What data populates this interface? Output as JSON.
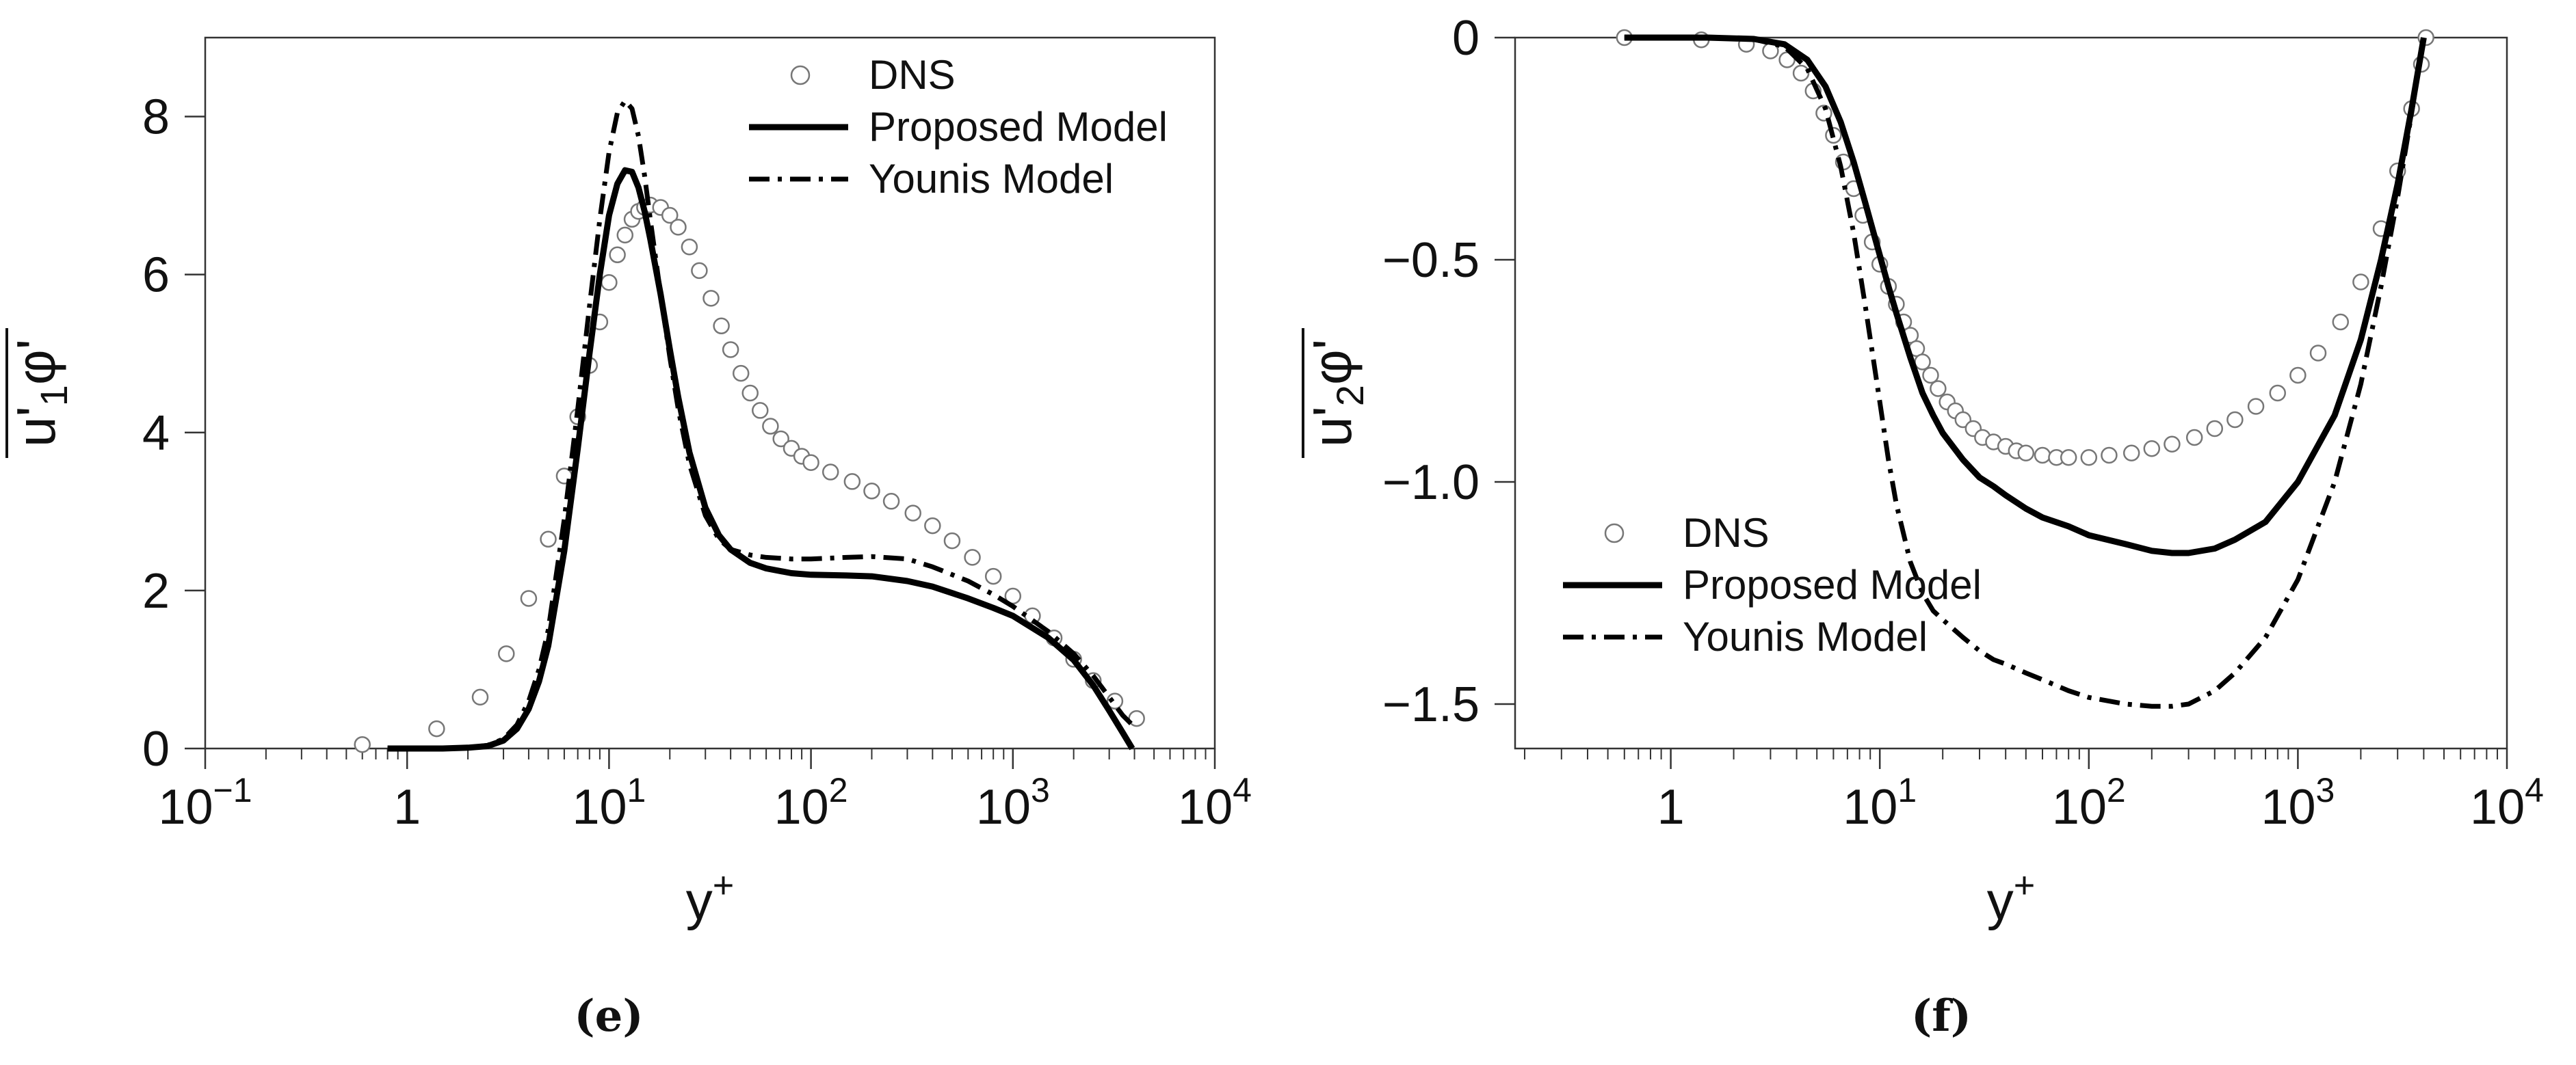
{
  "chart_data": [
    {
      "type": "line",
      "panel_caption": "(e)",
      "xscale": "log",
      "xlim": [
        0.1,
        10000
      ],
      "ylim": [
        0,
        9
      ],
      "xlabel": "y+",
      "ylabel": "u'1φ'",
      "x_ticks": [
        {
          "value": 0.1,
          "label": "10",
          "exp": "−1"
        },
        {
          "value": 1,
          "label": "1",
          "exp": ""
        },
        {
          "value": 10,
          "label": "10",
          "exp": "1"
        },
        {
          "value": 100,
          "label": "10",
          "exp": "2"
        },
        {
          "value": 1000,
          "label": "10",
          "exp": "3"
        },
        {
          "value": 10000,
          "label": "10",
          "exp": "4"
        }
      ],
      "y_ticks": [
        {
          "value": 0,
          "label": "0"
        },
        {
          "value": 2,
          "label": "2"
        },
        {
          "value": 4,
          "label": "4"
        },
        {
          "value": 6,
          "label": "6"
        },
        {
          "value": 8,
          "label": "8"
        }
      ],
      "legend_position": "top-right",
      "series": [
        {
          "name": "DNS",
          "style": "circles",
          "x": [
            0.6,
            1.4,
            2.3,
            3.1,
            4.0,
            5.0,
            6.0,
            7.0,
            8.0,
            9.0,
            10.0,
            11.0,
            12.0,
            13.0,
            14.0,
            15.0,
            16.0,
            18.0,
            20.0,
            22.0,
            25.0,
            28.0,
            32.0,
            36.0,
            40.0,
            45.0,
            50.0,
            56.0,
            63.0,
            71.0,
            80.0,
            90.0,
            100.0,
            125.0,
            160.0,
            200.0,
            250.0,
            320.0,
            400.0,
            500.0,
            630.0,
            800.0,
            1000.0,
            1250.0,
            1600.0,
            2000.0,
            2500.0,
            3200.0,
            4100.0
          ],
          "y": [
            0.05,
            0.25,
            0.65,
            1.2,
            1.9,
            2.65,
            3.45,
            4.2,
            4.85,
            5.4,
            5.9,
            6.25,
            6.5,
            6.7,
            6.8,
            6.85,
            6.88,
            6.85,
            6.75,
            6.6,
            6.35,
            6.05,
            5.7,
            5.35,
            5.05,
            4.75,
            4.5,
            4.28,
            4.08,
            3.92,
            3.8,
            3.7,
            3.62,
            3.5,
            3.38,
            3.26,
            3.13,
            2.98,
            2.82,
            2.63,
            2.42,
            2.18,
            1.93,
            1.68,
            1.4,
            1.13,
            0.86,
            0.6,
            0.38
          ]
        },
        {
          "name": "Proposed Model",
          "style": "solid",
          "x": [
            0.8,
            1.5,
            2.0,
            2.5,
            3.0,
            3.5,
            4.0,
            4.5,
            5.0,
            6.0,
            7.0,
            8.0,
            9.0,
            10.0,
            11.0,
            12.0,
            13.0,
            14.0,
            15.0,
            16.0,
            18.0,
            20.0,
            22.0,
            25.0,
            30.0,
            35.0,
            40.0,
            50.0,
            60.0,
            80.0,
            100.0,
            150.0,
            200.0,
            300.0,
            400.0,
            600.0,
            800.0,
            1000.0,
            1500.0,
            2000.0,
            2500.0,
            3000.0,
            3500.0,
            3900.0
          ],
          "y": [
            0.0,
            0.0,
            0.01,
            0.03,
            0.1,
            0.25,
            0.5,
            0.85,
            1.3,
            2.5,
            3.8,
            5.0,
            6.0,
            6.75,
            7.15,
            7.32,
            7.3,
            7.1,
            6.8,
            6.45,
            5.75,
            5.05,
            4.45,
            3.75,
            3.05,
            2.7,
            2.52,
            2.35,
            2.28,
            2.22,
            2.2,
            2.19,
            2.18,
            2.12,
            2.05,
            1.9,
            1.78,
            1.68,
            1.4,
            1.12,
            0.8,
            0.48,
            0.2,
            0.0
          ]
        },
        {
          "name": "Younis Model",
          "style": "dashdot",
          "x": [
            0.8,
            1.5,
            2.0,
            2.5,
            3.0,
            3.5,
            4.0,
            4.5,
            5.0,
            6.0,
            7.0,
            8.0,
            9.0,
            10.0,
            11.0,
            12.0,
            13.0,
            14.0,
            15.0,
            16.0,
            18.0,
            20.0,
            22.0,
            25.0,
            30.0,
            35.0,
            40.0,
            50.0,
            60.0,
            80.0,
            100.0,
            150.0,
            200.0,
            300.0,
            400.0,
            600.0,
            800.0,
            1000.0,
            1500.0,
            2000.0,
            2500.0,
            3000.0,
            3500.0,
            3900.0
          ],
          "y": [
            0.0,
            0.0,
            0.01,
            0.04,
            0.12,
            0.3,
            0.6,
            1.0,
            1.5,
            2.9,
            4.3,
            5.6,
            6.7,
            7.55,
            8.05,
            8.2,
            8.1,
            7.75,
            7.25,
            6.7,
            5.75,
            4.95,
            4.3,
            3.6,
            2.95,
            2.65,
            2.52,
            2.45,
            2.42,
            2.4,
            2.4,
            2.42,
            2.43,
            2.4,
            2.3,
            2.12,
            1.95,
            1.8,
            1.48,
            1.2,
            0.92,
            0.65,
            0.42,
            0.3
          ]
        }
      ]
    },
    {
      "type": "line",
      "panel_caption": "(f)",
      "xscale": "log",
      "xlim": [
        0.18,
        10000
      ],
      "ylim": [
        -1.6,
        0
      ],
      "xlabel": "y+",
      "ylabel": "u'2φ'",
      "x_ticks": [
        {
          "value": 1,
          "label": "1",
          "exp": ""
        },
        {
          "value": 10,
          "label": "10",
          "exp": "1"
        },
        {
          "value": 100,
          "label": "10",
          "exp": "2"
        },
        {
          "value": 1000,
          "label": "10",
          "exp": "3"
        },
        {
          "value": 10000,
          "label": "10",
          "exp": "4"
        }
      ],
      "y_ticks": [
        {
          "value": 0,
          "label": "0"
        },
        {
          "value": -0.5,
          "label": "−0.5"
        },
        {
          "value": -1.0,
          "label": "−1.0"
        },
        {
          "value": -1.5,
          "label": "−1.5"
        }
      ],
      "legend_position": "center-left",
      "series": [
        {
          "name": "DNS",
          "style": "circles",
          "x": [
            0.6,
            1.4,
            2.3,
            3.0,
            3.6,
            4.2,
            4.8,
            5.4,
            6.0,
            6.7,
            7.5,
            8.3,
            9.2,
            10.0,
            11.0,
            12.0,
            13.0,
            14.0,
            15.0,
            16.0,
            17.5,
            19.0,
            21.0,
            23.0,
            25.0,
            28.0,
            31.0,
            35.0,
            40.0,
            45.0,
            50.0,
            60.0,
            70.0,
            80.0,
            100.0,
            125.0,
            160.0,
            200.0,
            250.0,
            320.0,
            400.0,
            500.0,
            630.0,
            800.0,
            1000.0,
            1250.0,
            1600.0,
            2000.0,
            2500.0,
            3000.0,
            3500.0,
            3900.0,
            4100.0
          ],
          "y": [
            0.0,
            -0.005,
            -0.015,
            -0.03,
            -0.05,
            -0.08,
            -0.12,
            -0.17,
            -0.22,
            -0.28,
            -0.34,
            -0.4,
            -0.46,
            -0.51,
            -0.56,
            -0.6,
            -0.64,
            -0.67,
            -0.7,
            -0.73,
            -0.76,
            -0.79,
            -0.82,
            -0.84,
            -0.86,
            -0.88,
            -0.9,
            -0.91,
            -0.92,
            -0.93,
            -0.935,
            -0.94,
            -0.945,
            -0.945,
            -0.945,
            -0.94,
            -0.935,
            -0.925,
            -0.915,
            -0.9,
            -0.88,
            -0.86,
            -0.83,
            -0.8,
            -0.76,
            -0.71,
            -0.64,
            -0.55,
            -0.43,
            -0.3,
            -0.16,
            -0.06,
            0.0
          ]
        },
        {
          "name": "Proposed Model",
          "style": "solid",
          "x": [
            0.6,
            1.5,
            2.5,
            3.5,
            4.5,
            5.5,
            6.5,
            7.5,
            8.5,
            10.0,
            11.0,
            12.0,
            14.0,
            16.0,
            18.0,
            20.0,
            25.0,
            30.0,
            35.0,
            40.0,
            50.0,
            60.0,
            80.0,
            100.0,
            150.0,
            200.0,
            250.0,
            300.0,
            400.0,
            500.0,
            700.0,
            1000.0,
            1500.0,
            2000.0,
            2500.0,
            3000.0,
            3500.0,
            4000.0
          ],
          "y": [
            0.0,
            0.0,
            -0.003,
            -0.015,
            -0.05,
            -0.11,
            -0.19,
            -0.28,
            -0.37,
            -0.49,
            -0.56,
            -0.62,
            -0.72,
            -0.8,
            -0.85,
            -0.89,
            -0.95,
            -0.99,
            -1.01,
            -1.03,
            -1.06,
            -1.08,
            -1.1,
            -1.12,
            -1.14,
            -1.155,
            -1.16,
            -1.16,
            -1.15,
            -1.13,
            -1.09,
            -1.0,
            -0.85,
            -0.68,
            -0.5,
            -0.33,
            -0.16,
            0.0
          ]
        },
        {
          "name": "Younis Model",
          "style": "dashdot",
          "x": [
            0.6,
            1.5,
            2.5,
            3.5,
            4.5,
            5.5,
            6.5,
            7.5,
            8.5,
            10.0,
            11.0,
            12.0,
            14.0,
            16.0,
            18.0,
            20.0,
            25.0,
            30.0,
            35.0,
            40.0,
            50.0,
            60.0,
            80.0,
            100.0,
            150.0,
            200.0,
            250.0,
            300.0,
            400.0,
            500.0,
            700.0,
            1000.0,
            1500.0,
            2000.0,
            2500.0,
            3000.0,
            3500.0,
            4000.0
          ],
          "y": [
            0.0,
            0.0,
            -0.004,
            -0.02,
            -0.07,
            -0.16,
            -0.29,
            -0.44,
            -0.6,
            -0.82,
            -0.95,
            -1.05,
            -1.18,
            -1.25,
            -1.29,
            -1.31,
            -1.35,
            -1.38,
            -1.4,
            -1.41,
            -1.43,
            -1.445,
            -1.47,
            -1.485,
            -1.5,
            -1.505,
            -1.505,
            -1.5,
            -1.47,
            -1.43,
            -1.35,
            -1.22,
            -1.0,
            -0.78,
            -0.56,
            -0.36,
            -0.17,
            0.0
          ]
        }
      ]
    }
  ]
}
